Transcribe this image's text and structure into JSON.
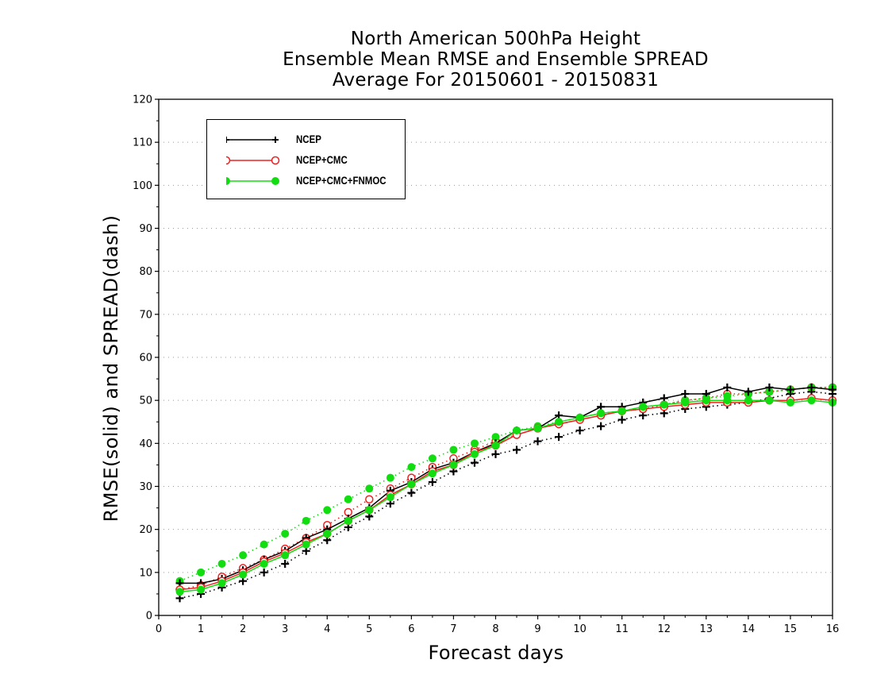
{
  "title": {
    "line1": "North American 500hPa Height",
    "line2": "Ensemble Mean RMSE and Ensemble SPREAD",
    "line3": "Average For 20150601 - 20150831"
  },
  "chart_data": {
    "type": "line",
    "title": "North American 500hPa Height / Ensemble Mean RMSE and Ensemble SPREAD / Average For 20150601 - 20150831",
    "xlabel": "Forecast days",
    "ylabel": "RMSE(solid) and SPREAD(dash)",
    "xlim": [
      0,
      16
    ],
    "ylim": [
      0,
      120
    ],
    "xticks": [
      "0",
      "1",
      "2",
      "3",
      "4",
      "5",
      "6",
      "7",
      "8",
      "9",
      "10",
      "11",
      "12",
      "13",
      "14",
      "15",
      "16"
    ],
    "yticks": [
      "0",
      "10",
      "20",
      "30",
      "40",
      "50",
      "60",
      "70",
      "80",
      "90",
      "100",
      "110",
      "120"
    ],
    "grid": "horizontal dotted",
    "legend_position": "top-left",
    "x": [
      0.5,
      1,
      1.5,
      2,
      2.5,
      3,
      3.5,
      4,
      4.5,
      5,
      5.5,
      6,
      6.5,
      7,
      7.5,
      8,
      8.5,
      9,
      9.5,
      10,
      10.5,
      11,
      11.5,
      12,
      12.5,
      13,
      13.5,
      14,
      14.5,
      15,
      15.5,
      16
    ],
    "series": [
      {
        "name": "NCEP",
        "color": "#000000",
        "marker": "plus",
        "rmse": [
          7.5,
          7.5,
          8.5,
          10.5,
          13,
          15,
          18,
          20,
          22.5,
          25,
          29,
          31,
          34,
          35.5,
          38,
          40,
          43,
          43.5,
          46.5,
          46,
          48.5,
          48.5,
          49.5,
          50.5,
          51.5,
          51.5,
          53,
          52,
          53,
          52.5,
          53,
          52.5
        ],
        "spread": [
          4,
          5,
          6.5,
          8,
          10,
          12,
          15,
          17.5,
          20.5,
          23,
          26,
          28.5,
          31,
          33.5,
          35.5,
          37.5,
          38.5,
          40.5,
          41.5,
          43,
          44,
          45.5,
          46.5,
          47,
          48,
          48.5,
          49,
          49.5,
          50.5,
          51.5,
          52,
          51.5
        ]
      },
      {
        "name": "NCEP+CMC",
        "color": "#ee2222",
        "marker": "open-circle",
        "rmse": [
          6,
          6.5,
          8,
          10,
          12.5,
          14.5,
          17,
          19,
          22,
          24.5,
          28,
          30.5,
          33.5,
          35,
          38,
          39.5,
          42,
          43.5,
          44.5,
          45.5,
          46.5,
          47.5,
          48,
          48.5,
          49,
          49.5,
          49.5,
          49.5,
          50,
          50,
          50.5,
          50
        ],
        "spread": [
          6,
          7,
          9,
          11,
          13,
          15.5,
          18,
          21,
          24,
          27,
          29.5,
          32,
          34.5,
          36.5,
          38.5,
          40.5,
          42,
          43.5,
          44.5,
          45.5,
          46.5,
          47.5,
          48,
          49,
          50,
          50.5,
          51.5,
          51.5,
          52,
          52.5,
          53,
          53
        ]
      },
      {
        "name": "NCEP+CMC+FNMOC",
        "color": "#11dd11",
        "marker": "filled-circle",
        "rmse": [
          5.5,
          6,
          7.5,
          9.5,
          12,
          14,
          16.5,
          19,
          22,
          24.5,
          27.5,
          30.5,
          33,
          35,
          37.5,
          39.5,
          43,
          43.5,
          45,
          46,
          47,
          47.5,
          48.5,
          49,
          49.5,
          50,
          50,
          50,
          50,
          49.5,
          50,
          49.5
        ],
        "spread": [
          8,
          10,
          12,
          14,
          16.5,
          19,
          22,
          24.5,
          27,
          29.5,
          32,
          34.5,
          36.5,
          38.5,
          40,
          41.5,
          43,
          44,
          45,
          46,
          47,
          47.5,
          48.5,
          49,
          50,
          50.5,
          51,
          51.5,
          52,
          52.5,
          53,
          53
        ]
      }
    ]
  }
}
